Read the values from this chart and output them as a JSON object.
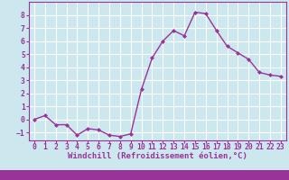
{
  "x": [
    0,
    1,
    2,
    3,
    4,
    5,
    6,
    7,
    8,
    9,
    10,
    11,
    12,
    13,
    14,
    15,
    16,
    17,
    18,
    19,
    20,
    21,
    22,
    23
  ],
  "y": [
    0.0,
    0.3,
    -0.4,
    -0.4,
    -1.2,
    -0.7,
    -0.8,
    -1.2,
    -1.3,
    -1.1,
    2.3,
    4.7,
    6.0,
    6.8,
    6.4,
    8.2,
    8.1,
    6.8,
    5.6,
    5.1,
    4.6,
    3.6,
    3.4,
    3.3
  ],
  "line_color": "#993399",
  "marker": "D",
  "marker_size": 2.0,
  "xlabel": "Windchill (Refroidissement éolien,°C)",
  "xlim": [
    -0.5,
    23.5
  ],
  "ylim": [
    -1.6,
    9.0
  ],
  "yticks": [
    -1,
    0,
    1,
    2,
    3,
    4,
    5,
    6,
    7,
    8
  ],
  "xticks": [
    0,
    1,
    2,
    3,
    4,
    5,
    6,
    7,
    8,
    9,
    10,
    11,
    12,
    13,
    14,
    15,
    16,
    17,
    18,
    19,
    20,
    21,
    22,
    23
  ],
  "background_color": "#cce8ee",
  "grid_color": "#ffffff",
  "axis_color": "#993399",
  "xlabel_fontsize": 6.5,
  "tick_fontsize": 5.8,
  "line_width": 1.0,
  "bottom_bar_color": "#993399",
  "bottom_bar_height": 10
}
